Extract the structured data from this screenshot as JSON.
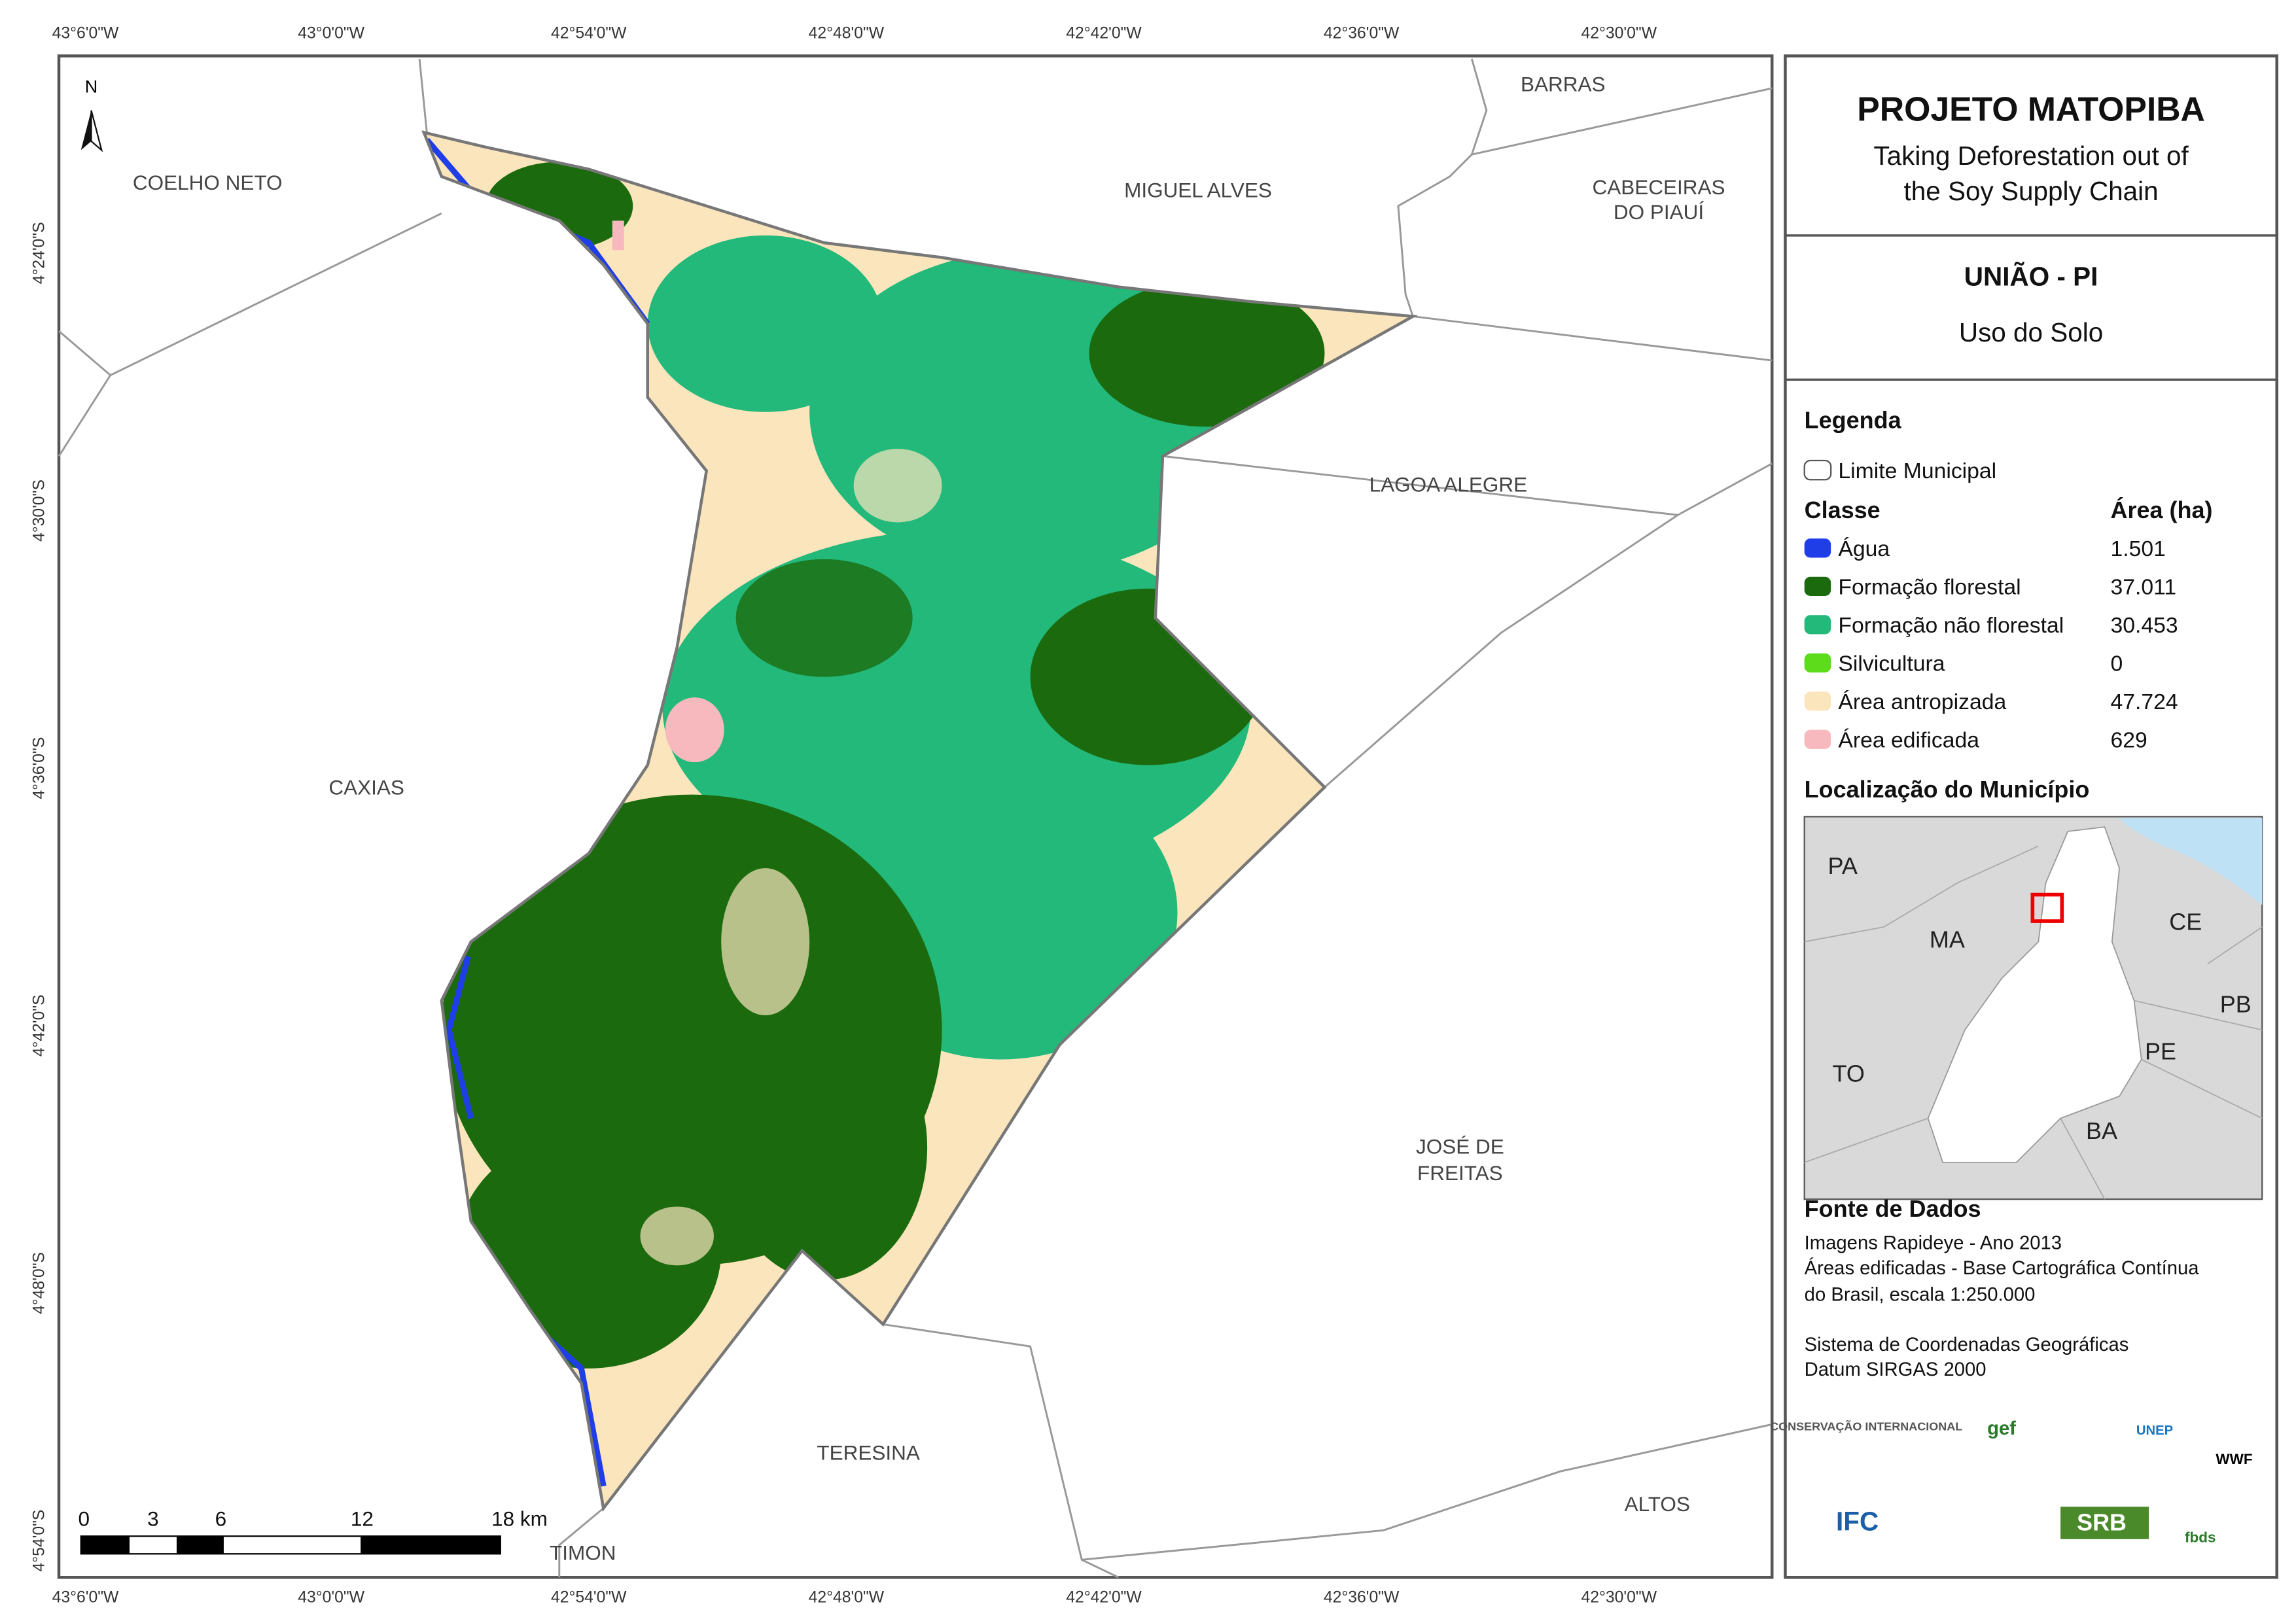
{
  "map": {
    "longitudes": [
      "43°6'0\"W",
      "43°0'0\"W",
      "42°54'0\"W",
      "42°48'0\"W",
      "42°42'0\"W",
      "42°36'0\"W",
      "42°30'0\"W"
    ],
    "latitudes": [
      "4°24'0\"S",
      "4°30'0\"S",
      "4°36'0\"S",
      "4°42'0\"S",
      "4°48'0\"S",
      "4°54'0\"S"
    ],
    "north": "N",
    "municipalities": [
      "COELHO NETO",
      "MIGUEL ALVES",
      "BARRAS",
      "CABECEIRAS",
      "DO PIAUÍ",
      "LAGOA ALEGRE",
      "CAXIAS",
      "JOSÉ DE",
      "FREITAS",
      "TERESINA",
      "ALTOS",
      "TIMON"
    ],
    "scale_bar": [
      "0",
      "3",
      "6",
      "12",
      "18 km"
    ]
  },
  "panel": {
    "title": "PROJETO MATOPIBA",
    "subtitle": [
      "Taking Deforestation out of",
      "the Soy Supply Chain"
    ],
    "municipality": "UNIÃO - PI",
    "theme": "Uso do Solo",
    "legend": {
      "heading": "Legenda",
      "boundary": "Limite Municipal",
      "class_header": "Classe",
      "area_header": "Área (ha)",
      "classes": [
        {
          "name": "Água",
          "color": "#1f3ee8",
          "area": "1.501"
        },
        {
          "name": "Formação florestal",
          "color": "#1b6b0e",
          "area": "37.011"
        },
        {
          "name": "Formação não florestal",
          "color": "#22b97a",
          "area": "30.453"
        },
        {
          "name": "Silvicultura",
          "color": "#5ddc1c",
          "area": "0"
        },
        {
          "name": "Área antropizada",
          "color": "#fbe5bd",
          "area": "47.724"
        },
        {
          "name": "Área edificada",
          "color": "#f7b9bd",
          "area": "629"
        }
      ]
    },
    "location": {
      "heading": "Localização do Município",
      "states": [
        "PA",
        "MA",
        "CE",
        "PB",
        "TO",
        "PE",
        "BA"
      ]
    },
    "sources": {
      "heading": "Fonte de Dados",
      "lines": [
        "Imagens Rapideye - Ano 2013",
        "Áreas edificadas - Base Cartográfica Contínua",
        "do Brasil, escala 1:250.000",
        "Sistema de Coordenadas Geográficas",
        "Datum SIRGAS 2000"
      ]
    },
    "logos": [
      "CONSERVAÇÃO INTERNACIONAL",
      "gef",
      "UNEP",
      "WWF",
      "IFC",
      "SRB",
      "fbds"
    ]
  }
}
